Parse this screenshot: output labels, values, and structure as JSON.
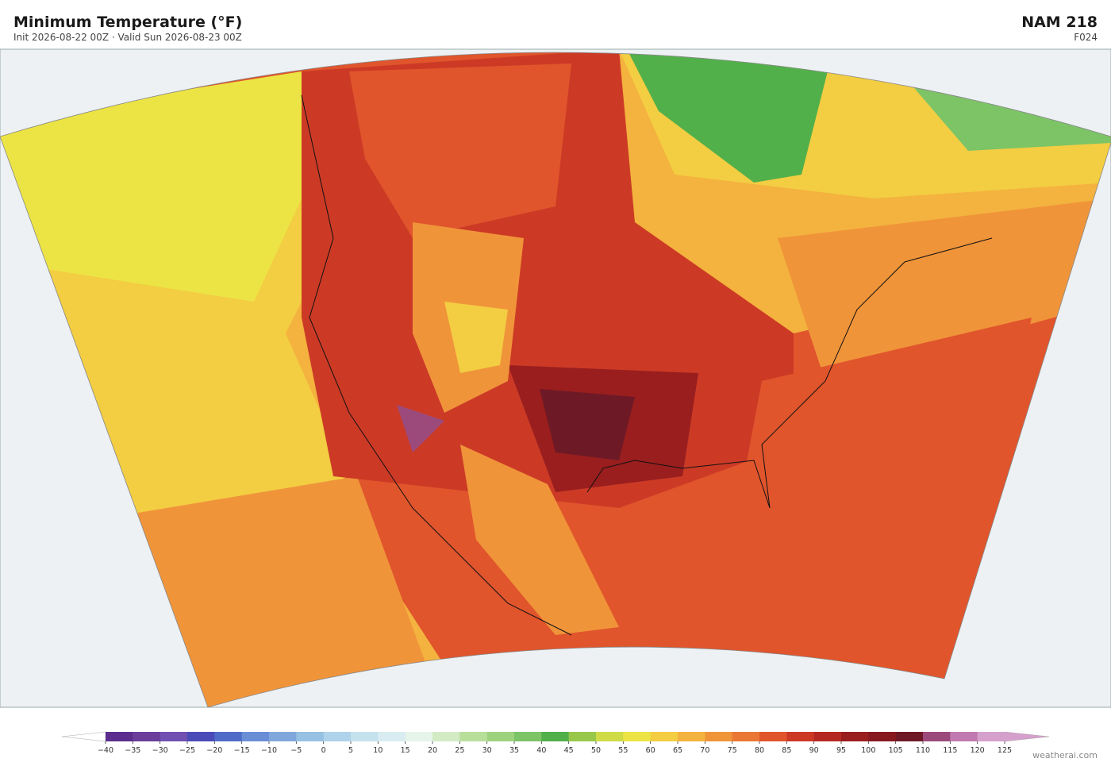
{
  "header": {
    "title": "Minimum Temperature  (°F)",
    "subtitle": "Init 2026-08-22 00Z  ·  Valid Sun 2026-08-23 00Z",
    "model": "NAM  218",
    "forecast_hour": "F024"
  },
  "colorbar": {
    "ticks": [
      {
        "value": -40,
        "label": "−40"
      },
      {
        "value": -35,
        "label": "−35"
      },
      {
        "value": -30,
        "label": "−30"
      },
      {
        "value": -25,
        "label": "−25"
      },
      {
        "value": -20,
        "label": "−20"
      },
      {
        "value": -15,
        "label": "−15"
      },
      {
        "value": -10,
        "label": "−10"
      },
      {
        "value": -5,
        "label": "−5"
      },
      0,
      5,
      10,
      15,
      20,
      25,
      30,
      35,
      40,
      45,
      50,
      55,
      60,
      65,
      70,
      75,
      80,
      85,
      90,
      95,
      100,
      105,
      110,
      115,
      120,
      125
    ],
    "colors": [
      "#5b2d8e",
      "#6a3d9a",
      "#7050b0",
      "#4a4ab8",
      "#4f6bc8",
      "#6a8ed6",
      "#7fa7dc",
      "#96c1e3",
      "#aed3ea",
      "#c4e2ee",
      "#d8ecf1",
      "#e6f4ea",
      "#d2ebc4",
      "#b8df9a",
      "#9ed37e",
      "#7cc466",
      "#52b04a",
      "#98c84a",
      "#cfdc48",
      "#ece444",
      "#f3cd42",
      "#f4b23e",
      "#f0943a",
      "#ea7734",
      "#e0552c",
      "#cc3a26",
      "#b42a22",
      "#9a1e1e",
      "#86181e",
      "#6e1a26",
      "#9c4a7c",
      "#c07ab0",
      "#d6a0cc"
    ],
    "under_color": "#ffffff",
    "over_color": "#d6a0cc"
  },
  "footer": {
    "watermark": "weatherai.com"
  }
}
